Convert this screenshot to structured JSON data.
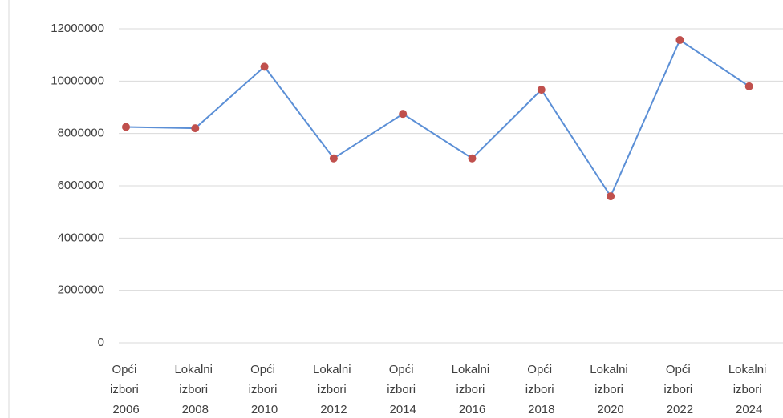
{
  "chart_data": {
    "type": "line",
    "categories": [
      "Opći izbori 2006",
      "Lokalni izbori 2008",
      "Opći izbori 2010",
      "Lokalni izbori 2012",
      "Opći izbori 2014",
      "Lokalni izbori 2016",
      "Opći izbori 2018",
      "Lokalni izbori 2020",
      "Opći izbori 2022",
      "Lokalni izbori 2024"
    ],
    "series": [
      {
        "color": "#5b8fd6",
        "marker_color": "#c0504d",
        "values": [
          8250000,
          8200000,
          10550000,
          7050000,
          8750000,
          7050000,
          9670000,
          5600000,
          11570000,
          9800000
        ]
      }
    ],
    "ylim": [
      0,
      12000000
    ],
    "yticks": [
      0,
      2000000,
      4000000,
      6000000,
      8000000,
      10000000,
      12000000
    ],
    "grid": true
  }
}
